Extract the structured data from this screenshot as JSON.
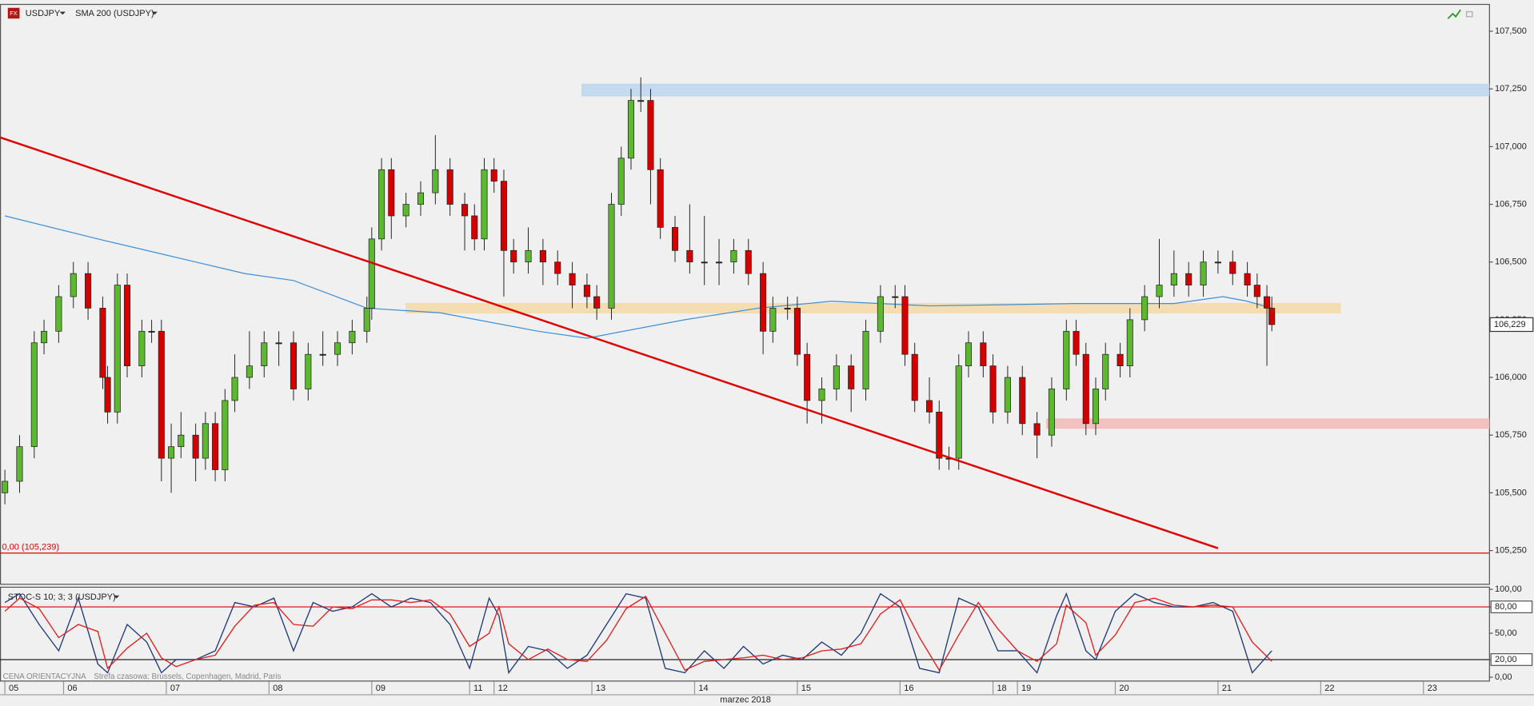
{
  "chart_data": [
    {
      "type": "candlestick",
      "title": "USDJPY",
      "xlim": [
        0,
        304.4
      ],
      "ylim": [
        105.106,
        107.614
      ],
      "yticks": [
        {
          "value": 107.5,
          "label": "107,500"
        },
        {
          "value": 107.25,
          "label": "107,250"
        },
        {
          "value": 107,
          "label": "107,000"
        },
        {
          "value": 106.75,
          "label": "106,750"
        },
        {
          "value": 106.5,
          "label": "106,500"
        },
        {
          "value": 106.25,
          "label": "106,250"
        },
        {
          "value": 106,
          "label": "106,000"
        },
        {
          "value": 105.75,
          "label": "105,750"
        },
        {
          "value": 105.5,
          "label": "105,500"
        },
        {
          "value": 105.25,
          "label": "105,250"
        }
      ],
      "up_color": "#5cb82e",
      "down_color": "#d40000",
      "x": [
        1,
        4,
        7,
        9,
        12,
        15,
        18,
        21,
        22,
        24,
        26,
        29,
        31,
        33,
        35,
        37,
        40,
        42,
        44,
        46,
        48,
        51,
        54,
        57,
        60,
        63,
        66,
        69,
        72,
        75,
        76,
        78,
        80,
        83,
        86,
        89,
        92,
        95,
        97,
        99,
        101,
        103,
        105,
        108,
        111,
        114,
        117,
        120,
        122,
        125,
        127,
        129,
        131,
        133,
        135,
        138,
        141,
        144,
        147,
        150,
        153,
        156,
        158,
        161,
        163,
        165,
        168,
        171,
        174,
        177,
        180,
        183,
        185,
        187,
        190,
        192,
        194,
        196,
        198,
        201,
        203,
        206,
        209,
        212,
        215,
        218,
        220,
        222,
        224,
        226,
        229,
        231,
        234,
        237,
        240,
        243,
        246,
        249,
        252,
        255,
        257,
        259,
        260
      ],
      "ohlc": [
        [
          105.5,
          105.6,
          105.45,
          105.55
        ],
        [
          105.55,
          105.75,
          105.5,
          105.7
        ],
        [
          105.7,
          106.2,
          105.65,
          106.15
        ],
        [
          106.15,
          106.25,
          106.1,
          106.2
        ],
        [
          106.2,
          106.4,
          106.15,
          106.35
        ],
        [
          106.35,
          106.5,
          106.3,
          106.45
        ],
        [
          106.45,
          106.5,
          106.25,
          106.3
        ],
        [
          106.3,
          106.35,
          105.95,
          106
        ],
        [
          106,
          106.05,
          105.8,
          105.85
        ],
        [
          105.85,
          106.45,
          105.8,
          106.4
        ],
        [
          106.4,
          106.45,
          106,
          106.05
        ],
        [
          106.05,
          106.25,
          106,
          106.2
        ],
        [
          106.2,
          106.25,
          106.15,
          106.2
        ],
        [
          106.2,
          106.25,
          105.55,
          105.65
        ],
        [
          105.65,
          105.8,
          105.5,
          105.7
        ],
        [
          105.7,
          105.85,
          105.65,
          105.75
        ],
        [
          105.75,
          105.8,
          105.55,
          105.65
        ],
        [
          105.65,
          105.85,
          105.6,
          105.8
        ],
        [
          105.8,
          105.85,
          105.55,
          105.6
        ],
        [
          105.6,
          105.95,
          105.55,
          105.9
        ],
        [
          105.9,
          106.1,
          105.85,
          106
        ],
        [
          106,
          106.2,
          105.95,
          106.05
        ],
        [
          106.05,
          106.2,
          106,
          106.15
        ],
        [
          106.15,
          106.2,
          106.05,
          106.15
        ],
        [
          106.15,
          106.2,
          105.9,
          105.95
        ],
        [
          105.95,
          106.15,
          105.9,
          106.1
        ],
        [
          106.1,
          106.2,
          106.05,
          106.1
        ],
        [
          106.1,
          106.2,
          106.05,
          106.15
        ],
        [
          106.15,
          106.25,
          106.1,
          106.2
        ],
        [
          106.2,
          106.35,
          106.15,
          106.3
        ],
        [
          106.3,
          106.65,
          106.25,
          106.6
        ],
        [
          106.6,
          106.95,
          106.55,
          106.9
        ],
        [
          106.9,
          106.95,
          106.6,
          106.7
        ],
        [
          106.7,
          106.8,
          106.65,
          106.75
        ],
        [
          106.75,
          106.85,
          106.7,
          106.8
        ],
        [
          106.8,
          107.05,
          106.75,
          106.9
        ],
        [
          106.9,
          106.95,
          106.7,
          106.75
        ],
        [
          106.75,
          106.8,
          106.55,
          106.7
        ],
        [
          106.7,
          106.75,
          106.55,
          106.6
        ],
        [
          106.6,
          106.95,
          106.55,
          106.9
        ],
        [
          106.9,
          106.95,
          106.8,
          106.85
        ],
        [
          106.85,
          106.9,
          106.35,
          106.55
        ],
        [
          106.55,
          106.6,
          106.45,
          106.5
        ],
        [
          106.5,
          106.65,
          106.45,
          106.55
        ],
        [
          106.55,
          106.6,
          106.4,
          106.5
        ],
        [
          106.5,
          106.55,
          106.4,
          106.45
        ],
        [
          106.45,
          106.5,
          106.3,
          106.4
        ],
        [
          106.4,
          106.45,
          106.3,
          106.35
        ],
        [
          106.35,
          106.4,
          106.25,
          106.3
        ],
        [
          106.3,
          106.8,
          106.25,
          106.75
        ],
        [
          106.75,
          107,
          106.7,
          106.95
        ],
        [
          106.95,
          107.25,
          106.9,
          107.2
        ],
        [
          107.2,
          107.3,
          107.15,
          107.2
        ],
        [
          107.2,
          107.25,
          106.75,
          106.9
        ],
        [
          106.9,
          106.95,
          106.6,
          106.65
        ],
        [
          106.65,
          106.7,
          106.5,
          106.55
        ],
        [
          106.55,
          106.75,
          106.45,
          106.5
        ],
        [
          106.5,
          106.7,
          106.4,
          106.5
        ],
        [
          106.5,
          106.6,
          106.4,
          106.5
        ],
        [
          106.5,
          106.6,
          106.45,
          106.55
        ],
        [
          106.55,
          106.6,
          106.4,
          106.45
        ],
        [
          106.45,
          106.5,
          106.1,
          106.2
        ],
        [
          106.2,
          106.35,
          106.15,
          106.3
        ],
        [
          106.3,
          106.35,
          106.25,
          106.3
        ],
        [
          106.3,
          106.35,
          106.05,
          106.1
        ],
        [
          106.1,
          106.15,
          105.8,
          105.9
        ],
        [
          105.9,
          106,
          105.8,
          105.95
        ],
        [
          105.95,
          106.1,
          105.9,
          106.05
        ],
        [
          106.05,
          106.1,
          105.85,
          105.95
        ],
        [
          105.95,
          106.25,
          105.9,
          106.2
        ],
        [
          106.2,
          106.4,
          106.15,
          106.35
        ],
        [
          106.35,
          106.4,
          106.3,
          106.35
        ],
        [
          106.35,
          106.4,
          106.05,
          106.1
        ],
        [
          106.1,
          106.15,
          105.85,
          105.9
        ],
        [
          105.9,
          106,
          105.8,
          105.85
        ],
        [
          105.85,
          105.9,
          105.6,
          105.65
        ],
        [
          105.65,
          105.7,
          105.6,
          105.65
        ],
        [
          105.65,
          106.1,
          105.6,
          106.05
        ],
        [
          106.05,
          106.2,
          106,
          106.15
        ],
        [
          106.15,
          106.2,
          106,
          106.05
        ],
        [
          106.05,
          106.1,
          105.8,
          105.85
        ],
        [
          105.85,
          106.05,
          105.8,
          106
        ],
        [
          106,
          106.05,
          105.75,
          105.8
        ],
        [
          105.8,
          105.85,
          105.65,
          105.75
        ],
        [
          105.75,
          106,
          105.7,
          105.95
        ],
        [
          105.95,
          106.25,
          105.9,
          106.2
        ],
        [
          106.2,
          106.25,
          106.05,
          106.1
        ],
        [
          106.1,
          106.15,
          105.75,
          105.8
        ],
        [
          105.8,
          106,
          105.75,
          105.95
        ],
        [
          105.95,
          106.15,
          105.9,
          106.1
        ],
        [
          106.1,
          106.15,
          106,
          106.05
        ],
        [
          106.05,
          106.3,
          106,
          106.25
        ],
        [
          106.25,
          106.4,
          106.2,
          106.35
        ],
        [
          106.35,
          106.6,
          106.3,
          106.4
        ],
        [
          106.4,
          106.55,
          106.35,
          106.45
        ],
        [
          106.45,
          106.5,
          106.35,
          106.4
        ],
        [
          106.4,
          106.55,
          106.35,
          106.5
        ],
        [
          106.5,
          106.55,
          106.45,
          106.5
        ],
        [
          106.5,
          106.55,
          106.4,
          106.45
        ],
        [
          106.45,
          106.5,
          106.35,
          106.4
        ],
        [
          106.4,
          106.45,
          106.3,
          106.35
        ],
        [
          106.35,
          106.4,
          106.05,
          106.3
        ],
        [
          106.3,
          106.35,
          106.2,
          106.229
        ]
      ],
      "series": [
        {
          "name": "SMA 200 (USDJPY)",
          "color": "#3d8fd6",
          "x": [
            1,
            20,
            30,
            40,
            50,
            60,
            75,
            90,
            110,
            120,
            140,
            155,
            170,
            190,
            220,
            240,
            250,
            255,
            260
          ],
          "values": [
            106.7,
            106.6,
            106.55,
            106.5,
            106.45,
            106.42,
            106.3,
            106.28,
            106.2,
            106.17,
            106.25,
            106.3,
            106.33,
            106.31,
            106.32,
            106.32,
            106.35,
            106.33,
            106.3
          ]
        }
      ],
      "zones": [
        {
          "x": [
            119,
            304.4
          ],
          "range": [
            107.22,
            107.27
          ],
          "color": "#bcd6ee"
        },
        {
          "x": [
            83,
            274
          ],
          "range": [
            106.28,
            106.32
          ],
          "color": "#f5d9a8"
        },
        {
          "x": [
            214,
            304.4
          ],
          "range": [
            105.78,
            105.82
          ],
          "color": "#f5b8b8"
        }
      ],
      "trendline": {
        "x": [
          0,
          249
        ],
        "values": [
          107.04,
          105.26
        ],
        "color": "#e00000"
      },
      "hline": {
        "value": 105.239,
        "label": "0,00 (105,239)",
        "color": "#e00000"
      },
      "last_price": {
        "value": 106.229,
        "label": "106,229"
      }
    },
    {
      "type": "line",
      "title": "STOC-S 10; 3; 3 (USDJPY)",
      "xlim": [
        0,
        304.4
      ],
      "ylim": [
        -5,
        103
      ],
      "yticks": [
        {
          "value": 100,
          "label": "100,00"
        },
        {
          "value": 80,
          "label": "80,00"
        },
        {
          "value": 50,
          "label": "50,00"
        },
        {
          "value": 20,
          "label": "20,00"
        },
        {
          "value": 0,
          "label": "0,00"
        }
      ],
      "levels": [
        {
          "value": 80,
          "color": "#e00000"
        },
        {
          "value": 20,
          "color": "#222222"
        }
      ],
      "x": [
        1,
        4,
        8,
        12,
        16,
        20,
        22,
        26,
        30,
        33,
        36,
        40,
        44,
        48,
        52,
        56,
        60,
        64,
        68,
        72,
        76,
        80,
        84,
        88,
        92,
        96,
        100,
        102,
        104,
        108,
        112,
        116,
        120,
        124,
        128,
        132,
        136,
        140,
        144,
        148,
        152,
        156,
        160,
        164,
        168,
        172,
        176,
        180,
        184,
        188,
        192,
        196,
        200,
        204,
        208,
        212,
        216,
        218,
        222,
        224,
        228,
        232,
        236,
        240,
        244,
        248,
        252,
        256,
        260
      ],
      "series": [
        {
          "color": "#1f3c78",
          "values": [
            85,
            95,
            60,
            30,
            90,
            15,
            5,
            60,
            40,
            5,
            20,
            20,
            30,
            85,
            80,
            90,
            30,
            85,
            75,
            80,
            95,
            80,
            90,
            85,
            60,
            10,
            90,
            70,
            5,
            35,
            30,
            10,
            25,
            60,
            95,
            90,
            10,
            5,
            30,
            10,
            35,
            15,
            25,
            20,
            40,
            25,
            50,
            95,
            80,
            10,
            5,
            90,
            80,
            30,
            30,
            5,
            70,
            95,
            30,
            20,
            75,
            95,
            85,
            80,
            80,
            85,
            75,
            5,
            30
          ]
        },
        {
          "color": "#e02020",
          "values": [
            75,
            90,
            78,
            45,
            60,
            52,
            10,
            33,
            50,
            22,
            12,
            20,
            25,
            58,
            82,
            85,
            60,
            58,
            80,
            78,
            88,
            88,
            85,
            88,
            72,
            35,
            50,
            80,
            38,
            20,
            32,
            20,
            18,
            42,
            78,
            92,
            50,
            8,
            18,
            20,
            22,
            25,
            20,
            22,
            30,
            32,
            38,
            72,
            88,
            45,
            8,
            48,
            85,
            55,
            30,
            18,
            38,
            82,
            62,
            25,
            48,
            85,
            90,
            82,
            80,
            82,
            80,
            40,
            18
          ]
        }
      ],
      "xticks": [
        {
          "value": 1,
          "label": "05"
        },
        {
          "value": 13,
          "label": "06"
        },
        {
          "value": 34,
          "label": "07"
        },
        {
          "value": 55,
          "label": "08"
        },
        {
          "value": 76,
          "label": "09"
        },
        {
          "value": 96,
          "label": "11"
        },
        {
          "value": 101,
          "label": "12"
        },
        {
          "value": 121,
          "label": "13"
        },
        {
          "value": 142,
          "label": "14"
        },
        {
          "value": 163,
          "label": "15"
        },
        {
          "value": 184,
          "label": "16"
        },
        {
          "value": 203,
          "label": "18"
        },
        {
          "value": 208,
          "label": "19"
        },
        {
          "value": 228,
          "label": "20"
        },
        {
          "value": 249,
          "label": "21"
        },
        {
          "value": 270,
          "label": "22"
        },
        {
          "value": 291,
          "label": "23"
        }
      ],
      "xlabel": "marzec 2018"
    }
  ],
  "footer": {
    "status": "CENA ORIENTACYJNA",
    "timezone": "Strefa czasowa: Brussels, Copenhagen, Madrid, Paris"
  }
}
